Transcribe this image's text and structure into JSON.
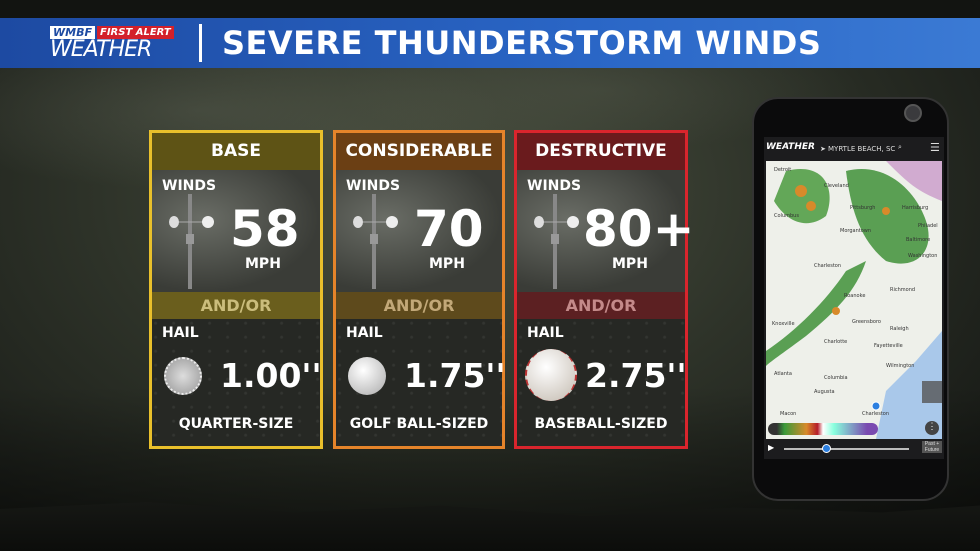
{
  "header": {
    "logo_text_1": "WMBF",
    "logo_text_2": "FIRST ALERT",
    "logo_text_3": "WEATHER",
    "title": "SEVERE THUNDERSTORM WINDS"
  },
  "cards": [
    {
      "title": "BASE",
      "winds_label": "WINDS",
      "wind_speed": "58",
      "wind_unit": "MPH",
      "andor": "AND/OR",
      "hail_label": "HAIL",
      "hail_size": "1.00''",
      "hail_desc": "QUARTER-SIZE",
      "hail_object": "quarter",
      "border_color": "#e9c02b",
      "header_color": "#5e5315",
      "band_color": "#6a5e1d",
      "band_text": "#cbbd7c"
    },
    {
      "title": "CONSIDERABLE",
      "winds_label": "WINDS",
      "wind_speed": "70",
      "wind_unit": "MPH",
      "andor": "AND/OR",
      "hail_label": "HAIL",
      "hail_size": "1.75''",
      "hail_desc": "GOLF BALL-SIZED",
      "hail_object": "golf-ball",
      "border_color": "#e5842a",
      "header_color": "#6b3f14",
      "band_color": "#5e4a1c",
      "band_text": "#c2a878"
    },
    {
      "title": "DESTRUCTIVE",
      "winds_label": "WINDS",
      "wind_speed": "80+",
      "wind_unit": "MPH",
      "andor": "AND/OR",
      "hail_label": "HAIL",
      "hail_size": "2.75''",
      "hail_desc": "BASEBALL-SIZED",
      "hail_object": "baseball",
      "border_color": "#d9252d",
      "header_color": "#6a1b1d",
      "band_color": "#5c2022",
      "band_text": "#c48a8a"
    }
  ],
  "phone": {
    "app_logo": "WEATHER",
    "location": "MYRTLE BEACH, SC",
    "map_labels": [
      "Detroit",
      "Cleveland",
      "Pittsburgh",
      "Harrisburg",
      "Philadel",
      "Columbus",
      "Morgantown",
      "Baltimore",
      "Washington",
      "Charleston",
      "Richmond",
      "Roanoke",
      "Greensboro",
      "Raleigh",
      "Knoxville",
      "Charlotte",
      "Fayetteville",
      "Wilmington",
      "Atlanta",
      "Columbia",
      "Augusta",
      "Macon",
      "Charleston"
    ],
    "timeline_label": "Past + Future"
  }
}
